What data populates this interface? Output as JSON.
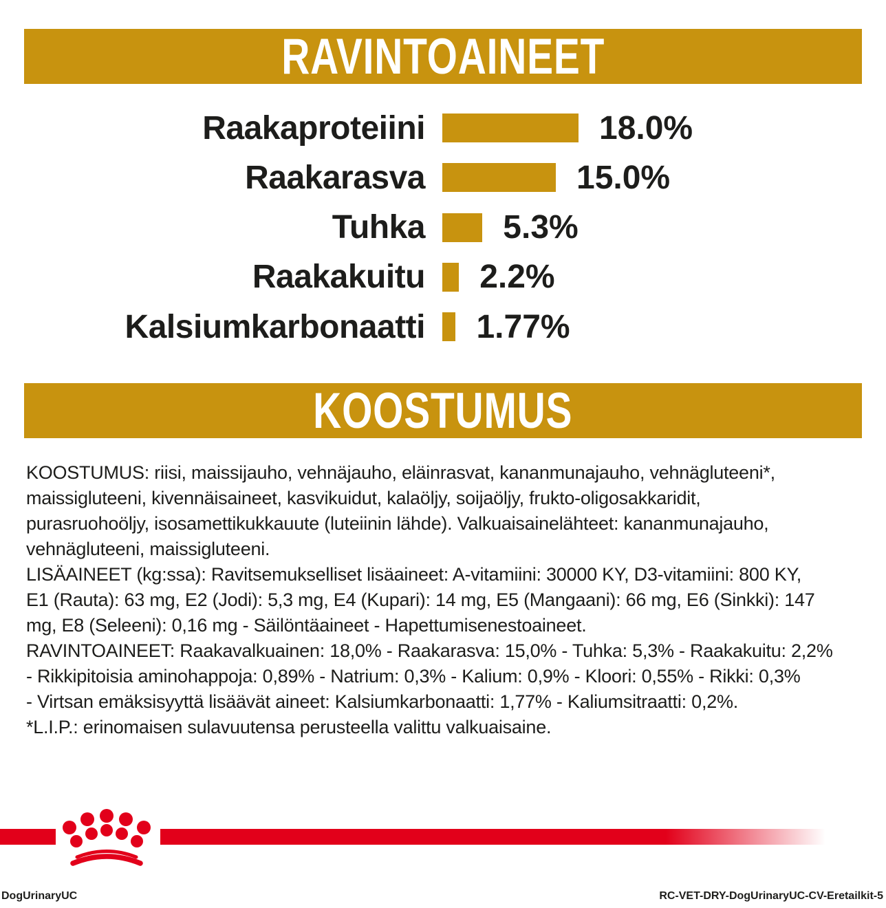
{
  "banners": {
    "nutrients_title": "RAVINTOAINEET",
    "composition_title": "KOOSTUMUS"
  },
  "chart_data": {
    "type": "bar",
    "orientation": "horizontal",
    "title": "RAVINTOAINEET",
    "categories": [
      "Raakaproteiini",
      "Raakarasva",
      "Tuhka",
      "Raakakuitu",
      "Kalsiumkarbonaatti"
    ],
    "values": [
      18.0,
      15.0,
      5.3,
      2.2,
      1.77
    ],
    "value_labels": [
      "18.0%",
      "15.0%",
      "5.3%",
      "2.2%",
      "1.77%"
    ],
    "value_suffix": "%",
    "xlim": [
      0,
      18
    ],
    "grid": false,
    "value_label_position": "right-of-bar",
    "bar_color": "#c8930f"
  },
  "body": {
    "paragraphs": [
      {
        "name": "koostumus",
        "lines": [
          "KOOSTUMUS: riisi, maissijauho, vehnäjauho, eläinrasvat, kananmunajauho, vehnägluteeni*,",
          "maissigluteeni, kivennäisaineet, kasvikuidut, kalaöljy, soijaöljy, frukto-oligosakkaridit,",
          "purasruohoöljy, isosamettikukkauute (luteiinin lähde). Valkuaisainelähteet: kananmunajauho,",
          "vehnägluteeni, maissigluteeni."
        ]
      },
      {
        "name": "lisaaineet",
        "lines": [
          "LISÄAINEET (kg:ssa): Ravitsemukselliset lisäaineet: A-vitamiini: 30000 KY, D3-vitamiini: 800 KY,",
          "E1 (Rauta): 63 mg, E2 (Jodi): 5,3 mg, E4 (Kupari): 14 mg, E5 (Mangaani): 66 mg, E6 (Sinkki): 147",
          "mg, E8 (Seleeni): 0,16 mg - Säilöntäaineet - Hapettumisenestoaineet."
        ]
      },
      {
        "name": "ravintoaineet",
        "lines": [
          "RAVINTOAINEET: Raakavalkuainen: 18,0% - Raakarasva: 15,0% - Tuhka: 5,3% - Raakakuitu: 2,2%",
          "- Rikkipitoisia aminohappoja: 0,89% - Natrium: 0,3% - Kalium: 0,9% - Kloori: 0,55% - Rikki: 0,3%",
          "- Virtsan emäksisyyttä lisäävät aineet: Kalsiumkarbonaatti: 1,77% - Kaliumsitraatti: 0,2%."
        ]
      },
      {
        "name": "lip-footnote",
        "lines": [
          "*L.I.P.: erinomaisen sulavuutensa perusteella valittu valkuaisaine."
        ]
      }
    ]
  },
  "footer": {
    "left_code": "DogUrinaryUC",
    "right_code": "RC-VET-DRY-DogUrinaryUC-CV-Eretailkit-5"
  },
  "colors": {
    "gold": "#c8930f",
    "red": "#e2001a",
    "text": "#1d1d1b"
  }
}
